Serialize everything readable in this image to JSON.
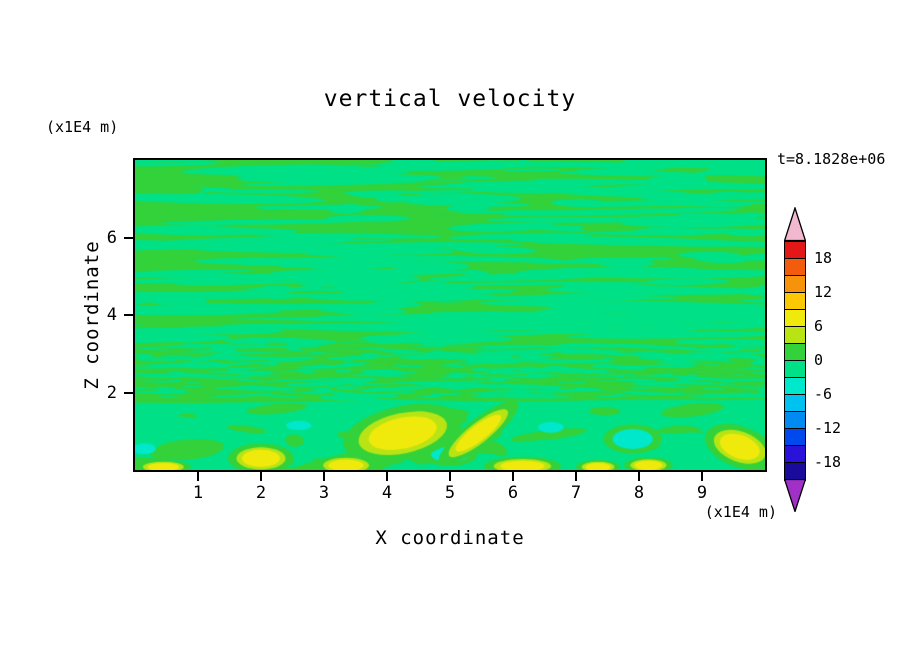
{
  "chart_data": {
    "type": "contour",
    "title": "vertical velocity",
    "xlabel": "X coordinate",
    "ylabel": "Z coordinate",
    "x_unit": "(x1E4 m)",
    "z_unit": "(x1E4 m)",
    "time_annotation": "t=8.1828e+06",
    "xlim": [
      0,
      10
    ],
    "zlim": [
      0,
      8
    ],
    "xticks": [
      1,
      2,
      3,
      4,
      5,
      6,
      7,
      8,
      9
    ],
    "zticks": [
      2,
      4,
      6
    ],
    "colorbar": {
      "labels": [
        "18",
        "12",
        "6",
        "0",
        "-6",
        "-12",
        "-18"
      ],
      "range": [
        -21,
        21
      ],
      "level_step": 3,
      "over_color": "#f2b8d0",
      "under_color": "#a030c8",
      "bands_top_to_bottom": [
        "#e21717",
        "#f25c0c",
        "#f7930b",
        "#fcc703",
        "#f0ea0c",
        "#b9e414",
        "#33d23a",
        "#00e187",
        "#00e8cc",
        "#00c2f0",
        "#008af2",
        "#0049ec",
        "#2a12d8",
        "#1b0b9b"
      ],
      "outline_color": "#000000"
    },
    "field": {
      "background_color": "#00e187",
      "streak_color": "#33d23a",
      "yellow_color": "#f0ea0c",
      "halo_color": "#b9e414",
      "cyan_color": "#00e8cc",
      "seed": 1234567,
      "streak_zone": [
        1.85,
        8
      ],
      "streak_count": 330,
      "cut_count": 230,
      "ripple_zone": [
        1.9,
        3.25
      ],
      "ripple_count": 680,
      "bottom_patch_count": 24,
      "yellow_blobs": [
        {
          "x": 4.25,
          "z": 0.95,
          "rx": 0.55,
          "rz": 0.4,
          "rot": -12
        },
        {
          "x": 5.45,
          "z": 0.95,
          "rx": 0.45,
          "rz": 0.2,
          "rot": -38
        },
        {
          "x": 2.0,
          "z": 0.3,
          "rx": 0.3,
          "rz": 0.22,
          "rot": 0
        },
        {
          "x": 3.35,
          "z": 0.12,
          "rx": 0.28,
          "rz": 0.15,
          "rot": 0
        },
        {
          "x": 6.15,
          "z": 0.1,
          "rx": 0.35,
          "rz": 0.14,
          "rot": 0
        },
        {
          "x": 7.35,
          "z": 0.08,
          "rx": 0.2,
          "rz": 0.1,
          "rot": 0
        },
        {
          "x": 8.15,
          "z": 0.12,
          "rx": 0.22,
          "rz": 0.12,
          "rot": 0
        },
        {
          "x": 9.6,
          "z": 0.6,
          "rx": 0.33,
          "rz": 0.3,
          "rot": 20
        },
        {
          "x": 0.45,
          "z": 0.08,
          "rx": 0.25,
          "rz": 0.1,
          "rot": 0
        }
      ],
      "cyan_blobs": [
        {
          "x": 5.0,
          "z": 0.4,
          "rx": 0.3,
          "rz": 0.2,
          "ring": true
        },
        {
          "x": 7.9,
          "z": 0.8,
          "rx": 0.32,
          "rz": 0.26,
          "ring": true
        },
        {
          "x": 9.35,
          "z": 0.9,
          "rx": 0.25,
          "rz": 0.2,
          "ring": false
        },
        {
          "x": 6.6,
          "z": 1.1,
          "rx": 0.2,
          "rz": 0.14,
          "ring": false
        },
        {
          "x": 4.7,
          "z": 1.35,
          "rx": 0.18,
          "rz": 0.1,
          "ring": false
        },
        {
          "x": 0.15,
          "z": 0.55,
          "rx": 0.18,
          "rz": 0.14,
          "ring": false
        },
        {
          "x": 2.6,
          "z": 1.15,
          "rx": 0.2,
          "rz": 0.12,
          "ring": false
        }
      ]
    }
  }
}
